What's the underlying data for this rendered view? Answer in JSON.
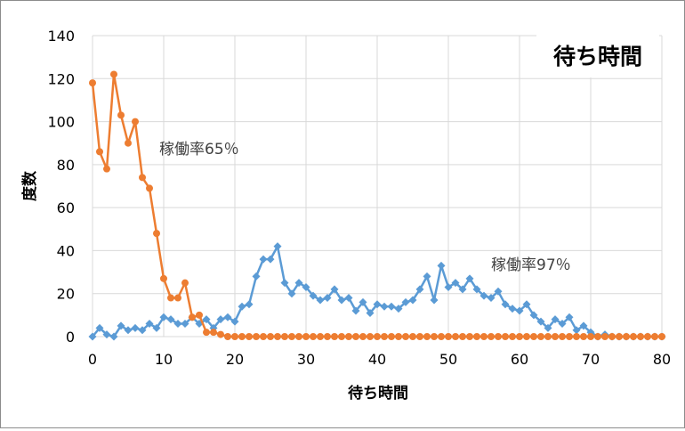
{
  "chart_data": {
    "type": "line",
    "title": "待ち時間",
    "xlabel": "待ち時間",
    "ylabel": "度数",
    "xlim": [
      0,
      80
    ],
    "ylim": [
      0,
      140
    ],
    "x_ticks": [
      0,
      10,
      20,
      30,
      40,
      50,
      60,
      70,
      80
    ],
    "y_ticks": [
      0,
      20,
      40,
      60,
      80,
      100,
      120,
      140
    ],
    "grid": true,
    "legend": "none",
    "series": [
      {
        "label": "稼働率65％",
        "color": "#ed7d31",
        "marker": "circle",
        "x": [
          0,
          1,
          2,
          3,
          4,
          5,
          6,
          7,
          8,
          9,
          10,
          11,
          12,
          13,
          14,
          15,
          16,
          17,
          18,
          19,
          20,
          21,
          22,
          23,
          24,
          25,
          26,
          27,
          28,
          29,
          30,
          31,
          32,
          33,
          34,
          35,
          36,
          37,
          38,
          39,
          40,
          41,
          42,
          43,
          44,
          45,
          46,
          47,
          48,
          49,
          50,
          51,
          52,
          53,
          54,
          55,
          56,
          57,
          58,
          59,
          60,
          61,
          62,
          63,
          64,
          65,
          66,
          67,
          68,
          69,
          70,
          71,
          72,
          73,
          74,
          75,
          76,
          77,
          78,
          79,
          80
        ],
        "values": [
          118,
          86,
          78,
          122,
          103,
          90,
          100,
          74,
          69,
          48,
          27,
          18,
          18,
          25,
          9,
          10,
          2,
          2,
          1,
          0,
          0,
          0,
          0,
          0,
          0,
          0,
          0,
          0,
          0,
          0,
          0,
          0,
          0,
          0,
          0,
          0,
          0,
          0,
          0,
          0,
          0,
          0,
          0,
          0,
          0,
          0,
          0,
          0,
          0,
          0,
          0,
          0,
          0,
          0,
          0,
          0,
          0,
          0,
          0,
          0,
          0,
          0,
          0,
          0,
          0,
          0,
          0,
          0,
          0,
          0,
          0,
          0,
          0,
          0,
          0,
          0,
          0,
          0,
          0,
          0,
          0
        ]
      },
      {
        "label": "稼働率97％",
        "color": "#5b9bd5",
        "marker": "diamond",
        "x": [
          0,
          1,
          2,
          3,
          4,
          5,
          6,
          7,
          8,
          9,
          10,
          11,
          12,
          13,
          14,
          15,
          16,
          17,
          18,
          19,
          20,
          21,
          22,
          23,
          24,
          25,
          26,
          27,
          28,
          29,
          30,
          31,
          32,
          33,
          34,
          35,
          36,
          37,
          38,
          39,
          40,
          41,
          42,
          43,
          44,
          45,
          46,
          47,
          48,
          49,
          50,
          51,
          52,
          53,
          54,
          55,
          56,
          57,
          58,
          59,
          60,
          61,
          62,
          63,
          64,
          65,
          66,
          67,
          68,
          69,
          70,
          71,
          72,
          73,
          74,
          75,
          76,
          77,
          78,
          79,
          80
        ],
        "values": [
          0,
          4,
          1,
          0,
          5,
          3,
          4,
          3,
          6,
          4,
          9,
          8,
          6,
          6,
          9,
          6,
          8,
          4,
          8,
          9,
          7,
          14,
          15,
          28,
          36,
          36,
          42,
          25,
          20,
          25,
          23,
          19,
          17,
          18,
          22,
          17,
          18,
          12,
          16,
          11,
          15,
          14,
          14,
          13,
          16,
          17,
          22,
          28,
          17,
          33,
          23,
          25,
          22,
          27,
          22,
          19,
          18,
          21,
          15,
          13,
          12,
          15,
          10,
          7,
          4,
          8,
          6,
          9,
          3,
          5,
          2,
          0,
          1,
          0,
          0,
          0,
          0,
          0,
          0,
          0,
          0
        ]
      }
    ]
  }
}
